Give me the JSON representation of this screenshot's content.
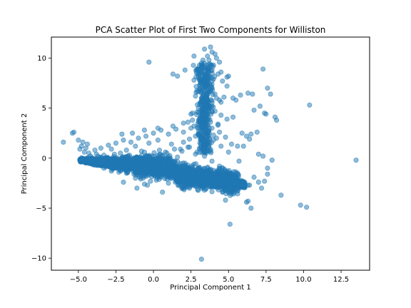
{
  "chart_data": {
    "type": "scatter",
    "title": "PCA Scatter Plot of First Two Components for Williston",
    "xlabel": "Principal Component 1",
    "ylabel": "Principal Component 2",
    "xlim": [
      -6.8,
      14.4
    ],
    "ylim": [
      -11.2,
      12.1
    ],
    "xticks": [
      -5.0,
      -2.5,
      0.0,
      2.5,
      5.0,
      7.5,
      10.0,
      12.5
    ],
    "xtick_labels": [
      "−5.0",
      "−2.5",
      "0.0",
      "2.5",
      "5.0",
      "7.5",
      "10.0",
      "12.5"
    ],
    "yticks": [
      -10,
      -5,
      0,
      5,
      10
    ],
    "ytick_labels": [
      "−10",
      "−5",
      "0",
      "5",
      "10"
    ],
    "grid": false,
    "legend": "none",
    "marker_color": "#1f77b4",
    "marker_alpha": 0.5,
    "series": [
      {
        "x": [
          -6.0,
          -5.4,
          -5.3,
          -5.0,
          -4.8,
          -4.6,
          -4.5,
          -4.2,
          -4.0,
          -3.8,
          -3.5,
          -3.3,
          -3.0,
          -2.8,
          -2.5,
          -2.2,
          -2.0,
          -1.8,
          -1.5,
          -1.2,
          -1.0,
          -0.8,
          -0.5,
          -0.3,
          0.0,
          0.3,
          0.5,
          0.8,
          1.0,
          1.2,
          1.5,
          1.8,
          2.0,
          2.3,
          2.5,
          2.8,
          3.0,
          3.2,
          3.5,
          3.8,
          4.0,
          4.2,
          4.5,
          4.8,
          5.0,
          5.2,
          5.5,
          5.8,
          6.0,
          6.3,
          -4.7,
          -4.4,
          -3.9,
          -3.6,
          -3.2,
          -2.7,
          -2.3,
          -1.9,
          -1.4,
          -0.9,
          -0.4,
          0.1,
          0.6,
          1.1,
          1.6,
          2.1,
          2.6,
          3.1,
          3.6,
          4.1,
          4.6,
          5.1,
          5.6,
          -4.9,
          -4.3,
          -3.7,
          -3.1,
          -2.6,
          -2.1,
          -1.6,
          -1.1,
          -0.6,
          -0.1,
          0.4,
          0.9,
          1.4,
          1.9,
          2.4,
          2.9,
          3.4,
          3.9,
          4.4,
          4.9,
          5.4,
          5.9,
          -3.5,
          -3.0,
          -2.5,
          -2.0,
          -1.5,
          -1.0,
          -0.5,
          0.0,
          0.5,
          1.0,
          1.5,
          2.0,
          2.5,
          3.0,
          3.5,
          4.0,
          4.5,
          5.0,
          -3.3,
          -2.8,
          -2.3,
          -1.8,
          -1.3,
          -0.8,
          -0.3,
          0.2,
          0.7,
          1.2,
          1.7,
          2.2,
          2.7,
          3.2,
          3.7,
          4.2,
          -2.1,
          -1.4,
          -0.6,
          0.3,
          1.3,
          2.0,
          2.6,
          3.1,
          3.8,
          4.3,
          2.6,
          3.0,
          3.3,
          3.6,
          3.9,
          4.2,
          4.5,
          2.8,
          3.2,
          3.5,
          3.8,
          4.1,
          4.4,
          4.7,
          2.7,
          3.1,
          3.4,
          3.7,
          4.0,
          4.3,
          4.6,
          4.9,
          3.0,
          3.5,
          4.0,
          4.5,
          5.0,
          3.3,
          3.6,
          3.9,
          4.2,
          3.4,
          3.8,
          4.1,
          2.7,
          3.2,
          3.7,
          4.4,
          3.5,
          3.9,
          2.5,
          2.9,
          3.3,
          3.7,
          4.1,
          4.5,
          4.9,
          5.3,
          2.3,
          2.7,
          3.1,
          3.5,
          3.9,
          4.3,
          2.0,
          2.4,
          2.8,
          3.2,
          3.6,
          4.0,
          4.4,
          4.8,
          5.2,
          5.6,
          -0.3,
          1.3,
          1.6,
          2.1,
          4.9,
          5.3,
          5.5,
          5.8,
          6.3,
          6.6,
          6.7,
          7.1,
          7.4,
          7.5,
          7.6,
          7.8,
          8.1,
          8.2,
          7.3,
          6.9,
          6.5,
          6.2,
          5.9,
          6.0,
          6.4,
          5.7,
          7.0,
          7.3,
          7.6,
          7.9,
          6.4,
          6.7,
          7.0,
          7.4,
          7.6,
          8.5,
          9.8,
          10.2,
          10.4,
          13.5,
          5.2,
          5.9,
          6.3,
          6.5,
          6.2,
          7.2,
          4.8,
          5.1,
          3.2,
          -1.1,
          -0.4,
          0.6,
          1.0,
          1.4,
          -2.0,
          -1.2,
          -0.8,
          0.2,
          0.5,
          2.0,
          2.3,
          -0.6,
          -0.2,
          0.1,
          0.9,
          3.5,
          3.8,
          4.6
        ],
        "y": [
          1.6,
          2.5,
          2.6,
          1.8,
          1.2,
          0.6,
          1.0,
          0.2,
          -0.2,
          0.4,
          -0.5,
          0.3,
          -0.8,
          0.9,
          -0.6,
          0.5,
          -1.0,
          0.8,
          -0.9,
          1.2,
          -1.3,
          0.7,
          -1.1,
          1.5,
          -0.8,
          1.8,
          -1.5,
          0.6,
          -1.2,
          1.4,
          -1.6,
          0.9,
          -1.9,
          1.1,
          -2.0,
          0.4,
          -2.3,
          1.5,
          -2.4,
          0.7,
          -2.6,
          2.0,
          -2.7,
          -1.4,
          -2.9,
          -2.1,
          -3.0,
          -2.6,
          -2.8,
          -2.7,
          1.6,
          1.4,
          0.8,
          -0.4,
          0.0,
          -0.3,
          -0.5,
          -0.7,
          -0.2,
          -0.6,
          0.2,
          -0.4,
          0.3,
          -0.7,
          0.1,
          -0.5,
          -0.9,
          -1.2,
          -1.0,
          -1.5,
          -1.8,
          -2.2,
          -2.5,
          0.9,
          0.5,
          0.2,
          -0.6,
          0.4,
          0.0,
          0.3,
          0.1,
          0.6,
          0.2,
          0.8,
          0.5,
          0.9,
          0.7,
          1.1,
          0.6,
          0.2,
          -0.3,
          -0.8,
          -1.3,
          -1.9,
          -2.4,
          1.0,
          1.3,
          1.5,
          1.8,
          1.6,
          2.0,
          2.2,
          2.5,
          2.8,
          2.4,
          2.9,
          2.6,
          3.0,
          2.7,
          2.2,
          1.8,
          1.2,
          0.6,
          -1.0,
          -1.3,
          -1.4,
          -1.5,
          -1.6,
          -1.5,
          -1.7,
          -1.6,
          -1.5,
          -1.8,
          -1.9,
          -2.1,
          -2.2,
          -2.3,
          -2.1,
          -2.4,
          2.4,
          2.5,
          2.8,
          3.0,
          3.2,
          3.5,
          3.8,
          4.0,
          3.6,
          3.4,
          4.5,
          5.0,
          4.7,
          5.5,
          5.2,
          6.0,
          5.6,
          6.2,
          6.5,
          5.9,
          6.8,
          6.4,
          5.8,
          6.1,
          7.8,
          8.0,
          7.6,
          8.2,
          7.9,
          8.4,
          7.7,
          8.1,
          8.8,
          9.0,
          9.3,
          8.6,
          8.2,
          9.8,
          10.2,
          10.6,
          10.0,
          10.9,
          11.1,
          10.4,
          10.2,
          9.5,
          9.8,
          9.6,
          7.2,
          7.0,
          4.4,
          4.6,
          4.9,
          5.2,
          4.7,
          4.3,
          3.9,
          4.1,
          3.6,
          3.2,
          3.8,
          3.5,
          3.0,
          3.3,
          1.6,
          1.9,
          2.2,
          2.0,
          1.7,
          2.3,
          2.6,
          2.1,
          1.4,
          1.2,
          9.6,
          8.4,
          8.2,
          8.8,
          7.2,
          6.0,
          5.8,
          6.3,
          6.5,
          6.4,
          4.8,
          5.2,
          4.5,
          4.4,
          7.0,
          6.4,
          4.1,
          3.8,
          8.9,
          2.6,
          2.4,
          2.2,
          2.5,
          1.2,
          1.9,
          -0.3,
          0.4,
          0.2,
          -1.0,
          -0.2,
          -2.7,
          -1.9,
          -2.4,
          -2.3,
          -1.6,
          -3.7,
          -4.7,
          -4.9,
          5.3,
          -0.2,
          -2.2,
          -2.6,
          -4.3,
          -5.0,
          -4.4,
          -3.0,
          -4.2,
          -6.6,
          -10.1,
          -3.0,
          -2.7,
          -3.4,
          -2.5,
          -2.0,
          -2.4,
          -2.0,
          -1.7,
          -2.2,
          -1.9,
          -1.8,
          -2.9,
          -2.6,
          -2.3,
          -1.8,
          -2.1,
          -3.1,
          -2.9,
          -3.4
        ]
      }
    ]
  }
}
